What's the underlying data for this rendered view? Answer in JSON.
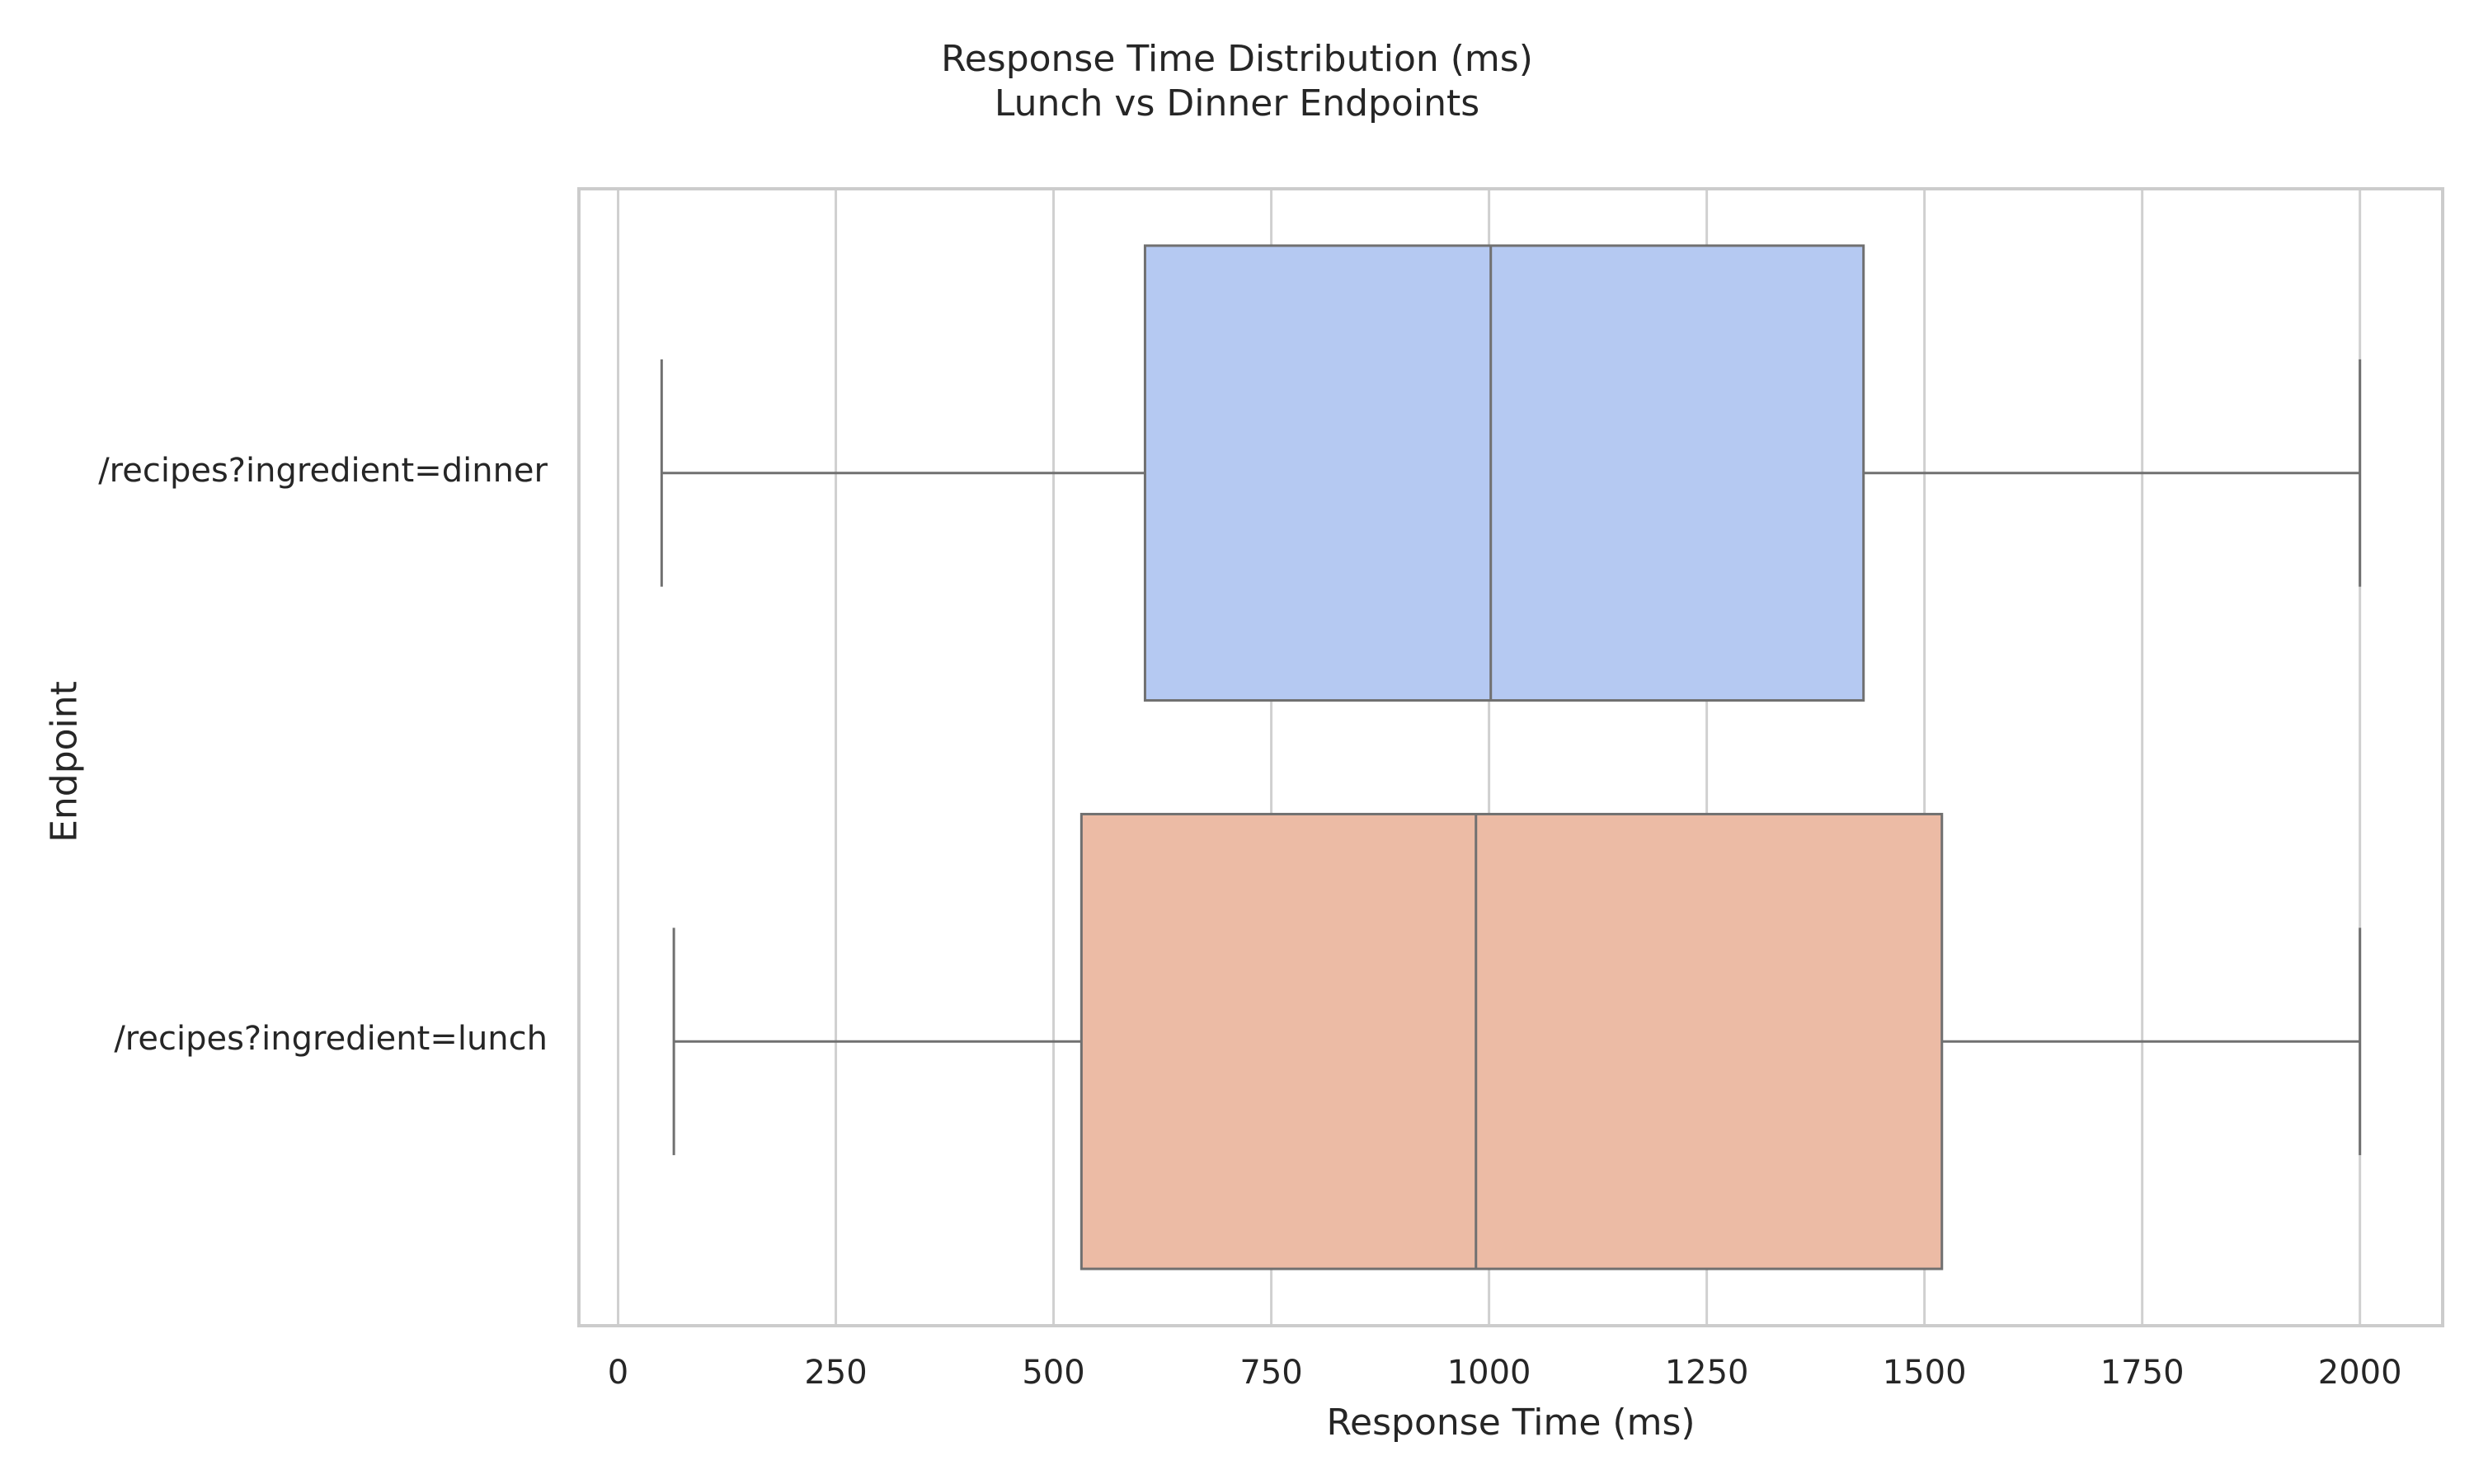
{
  "chart_data": {
    "type": "boxplot",
    "orientation": "horizontal",
    "title": "Response Time Distribution (ms)",
    "subtitle": "Lunch vs Dinner Endpoints",
    "xlabel": "Response Time (ms)",
    "ylabel": "Endpoint",
    "xlim": [
      -45,
      2095
    ],
    "xticks": [
      0,
      250,
      500,
      750,
      1000,
      1250,
      1500,
      1750,
      2000
    ],
    "grid": "vertical",
    "legend": "none",
    "categories": [
      "/recipes?ingredient=dinner",
      "/recipes?ingredient=lunch"
    ],
    "series": [
      {
        "category": "/recipes?ingredient=dinner",
        "min": 50,
        "q1": 605,
        "median": 1002,
        "q3": 1430,
        "max": 2000,
        "color": "#b5c9f2"
      },
      {
        "category": "/recipes?ingredient=lunch",
        "min": 64,
        "q1": 532,
        "median": 985,
        "q3": 1520,
        "max": 2000,
        "color": "#ecbba5"
      }
    ]
  },
  "style": {
    "line_color": "#707070",
    "grid_color": "#d0d0d0",
    "frame_color": "#cccccc"
  }
}
